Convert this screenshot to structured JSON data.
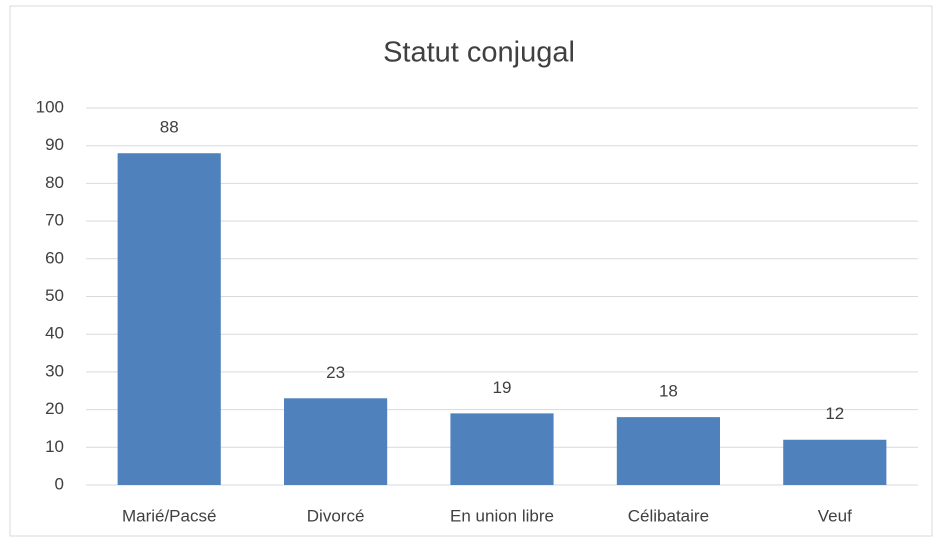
{
  "chart_data": {
    "type": "bar",
    "title": "Statut conjugal",
    "categories": [
      "Marié/Pacsé",
      "Divorcé",
      "En union libre",
      "Célibataire",
      "Veuf"
    ],
    "values": [
      88,
      23,
      19,
      18,
      12
    ],
    "color": "#4f81bd",
    "ylim": [
      0,
      100
    ],
    "yticks": [
      0,
      10,
      20,
      30,
      40,
      50,
      60,
      70,
      80,
      90,
      100
    ],
    "grid": true,
    "data_labels": true
  }
}
